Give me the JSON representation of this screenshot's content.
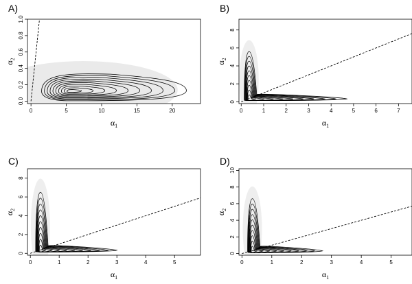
{
  "figure": {
    "background": "#ffffff",
    "contour_color": "#000000",
    "density_color": "#d9d9d9"
  },
  "chart_data": [
    {
      "panel": "A)",
      "type": "contour",
      "xlabel": {
        "base": "α",
        "sub": "1"
      },
      "ylabel": {
        "base": "α",
        "sub": "2"
      },
      "xlim": [
        -0.5,
        24
      ],
      "ylim": [
        -0.03,
        1.0
      ],
      "xticks": [
        0,
        5,
        10,
        15,
        20
      ],
      "yticks": [
        0.0,
        0.2,
        0.4,
        0.6,
        0.8,
        1.0
      ],
      "ytick_labels": [
        "0.0",
        "0.2",
        "0.4",
        "0.6",
        "0.8",
        "1.0"
      ],
      "reference_line": {
        "style": "dashed",
        "x": [
          0,
          1.2
        ],
        "y": [
          0,
          1.0
        ]
      },
      "contour_peak": {
        "x": 5.5,
        "y": 0.12
      },
      "contour_x_range": [
        1.5,
        22
      ],
      "contour_y_max": 0.34,
      "contour_levels": 10
    },
    {
      "panel": "B)",
      "type": "contour",
      "xlabel": {
        "base": "α",
        "sub": "1"
      },
      "ylabel": {
        "base": "α",
        "sub": "2"
      },
      "xlim": [
        -0.1,
        7.6
      ],
      "ylim": [
        -0.2,
        9.2
      ],
      "xticks": [
        0,
        1,
        2,
        3,
        4,
        5,
        6,
        7
      ],
      "yticks": [
        0,
        2,
        4,
        6,
        8
      ],
      "reference_line": {
        "style": "dashed",
        "x": [
          0,
          7.6
        ],
        "y": [
          0,
          7.6
        ]
      },
      "contour_peak": {
        "x": 0.35,
        "y": 0.4
      },
      "contour_x_range": [
        0.05,
        4.7
      ],
      "contour_y_max": 5.6,
      "contour_levels": 10
    },
    {
      "panel": "C)",
      "type": "contour",
      "xlabel": {
        "base": "α",
        "sub": "1"
      },
      "ylabel": {
        "base": "α",
        "sub": "2"
      },
      "xlim": [
        -0.1,
        5.9
      ],
      "ylim": [
        -0.2,
        9.0
      ],
      "xticks": [
        0,
        1,
        2,
        3,
        4,
        5
      ],
      "yticks": [
        0,
        2,
        4,
        6,
        8
      ],
      "reference_line": {
        "style": "dashed",
        "x": [
          0,
          5.9
        ],
        "y": [
          0,
          5.9
        ]
      },
      "contour_peak": {
        "x": 0.35,
        "y": 0.4
      },
      "contour_x_range": [
        0.05,
        3.0
      ],
      "contour_y_max": 6.5,
      "contour_levels": 10
    },
    {
      "panel": "D)",
      "type": "contour",
      "xlabel": {
        "base": "α",
        "sub": "1"
      },
      "ylabel": {
        "base": "α",
        "sub": "2"
      },
      "xlim": [
        -0.1,
        5.7
      ],
      "ylim": [
        -0.2,
        10.2
      ],
      "xticks": [
        0,
        1,
        2,
        3,
        4,
        5
      ],
      "yticks": [
        0,
        2,
        4,
        6,
        8,
        10
      ],
      "reference_line": {
        "style": "dashed",
        "x": [
          0,
          5.7
        ],
        "y": [
          0,
          5.7
        ]
      },
      "contour_peak": {
        "x": 0.35,
        "y": 0.4
      },
      "contour_x_range": [
        0.05,
        2.7
      ],
      "contour_y_max": 6.6,
      "contour_levels": 10
    }
  ]
}
